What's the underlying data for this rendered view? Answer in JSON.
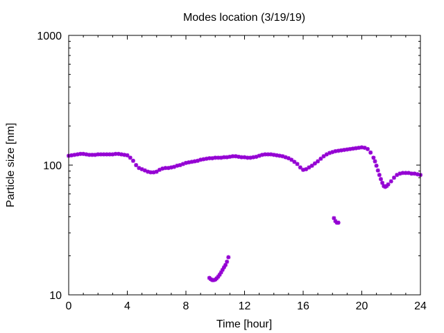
{
  "chart_data": {
    "type": "scatter",
    "title": "Modes location (3/19/19)",
    "xlabel": "Time [hour]",
    "ylabel": "Particle size [nm]",
    "xlim": [
      0,
      24
    ],
    "ylim": [
      10,
      1000
    ],
    "yscale": "log",
    "grid": false,
    "legend": "none",
    "marker_color": "#9400d3",
    "marker": "star",
    "xticks": [
      0,
      4,
      8,
      12,
      16,
      20,
      24
    ],
    "xtick_labels": [
      "0",
      "4",
      "8",
      "12",
      "16",
      "20",
      "24"
    ],
    "yticks": [
      10,
      100,
      1000
    ],
    "ytick_labels": [
      "10",
      "100",
      "1000"
    ],
    "series": [
      {
        "x": [
          0.0,
          0.2,
          0.4,
          0.6,
          0.8,
          1.0,
          1.2,
          1.4,
          1.6,
          1.8,
          2.0,
          2.2,
          2.4,
          2.6,
          2.8,
          3.0,
          3.2,
          3.4,
          3.6,
          3.8,
          4.0,
          4.2,
          4.4,
          4.6,
          4.8,
          5.0,
          5.2,
          5.4,
          5.6,
          5.8,
          6.0,
          6.2,
          6.4,
          6.6,
          6.8,
          7.0,
          7.2,
          7.4,
          7.6,
          7.8,
          8.0,
          8.2,
          8.4,
          8.6,
          8.8,
          9.0,
          9.2,
          9.4,
          9.6,
          9.8,
          10.0,
          10.2,
          10.4,
          10.6,
          10.8,
          11.0,
          11.2,
          11.4,
          11.6,
          11.8,
          12.0,
          12.2,
          12.4,
          12.6,
          12.8,
          13.0,
          13.2,
          13.4,
          13.6,
          13.8,
          14.0,
          14.2,
          14.4,
          14.6,
          14.8,
          15.0,
          15.2,
          15.4,
          15.6,
          15.8,
          16.0,
          16.2,
          16.4,
          16.6,
          16.8,
          17.0,
          17.2,
          17.4,
          17.6,
          17.8,
          18.0,
          18.2,
          18.4,
          18.6,
          18.8,
          19.0,
          19.2,
          19.4,
          19.6,
          19.8,
          20.0,
          20.2,
          20.4,
          20.6,
          20.8
        ],
        "y": [
          118,
          119,
          120,
          121,
          122,
          122,
          121,
          120,
          120,
          120,
          121,
          121,
          121,
          121,
          121,
          121,
          122,
          122,
          121,
          120,
          119,
          114,
          108,
          100,
          95,
          93,
          91,
          89,
          88,
          88,
          89,
          92,
          94,
          95,
          95,
          96,
          97,
          99,
          100,
          102,
          104,
          105,
          106,
          107,
          108,
          110,
          111,
          112,
          113,
          113,
          114,
          114,
          114,
          115,
          115,
          116,
          117,
          117,
          116,
          115,
          115,
          114,
          114,
          115,
          116,
          118,
          120,
          121,
          121,
          121,
          120,
          119,
          118,
          117,
          115,
          113,
          110,
          106,
          102,
          96,
          92,
          93,
          96,
          99,
          103,
          107,
          112,
          117,
          121,
          124,
          126,
          128,
          129,
          130,
          131,
          132,
          133,
          134,
          135,
          136,
          137,
          136,
          133,
          125,
          114
        ]
      },
      {
        "x": [
          20.9,
          21.0,
          21.1,
          21.2,
          21.3,
          21.4,
          21.5,
          21.6,
          21.7,
          21.8,
          22.0,
          22.2,
          22.4,
          22.6,
          22.8,
          23.0,
          23.2,
          23.4,
          23.6,
          23.8,
          24.0
        ],
        "y": [
          107,
          99,
          91,
          84,
          78,
          73,
          69,
          68,
          69,
          71,
          75,
          80,
          84,
          86,
          87,
          87,
          87,
          86,
          86,
          85,
          84
        ]
      },
      {
        "x": [
          9.6,
          9.7,
          9.8,
          9.9,
          10.0,
          10.1,
          10.2,
          10.3,
          10.4,
          10.5,
          10.6,
          10.7,
          10.8,
          10.9
        ],
        "y": [
          13.5,
          13.2,
          13.0,
          13.0,
          13.1,
          13.4,
          13.8,
          14.3,
          14.9,
          15.6,
          16.3,
          17.0,
          18.0,
          19.5
        ]
      },
      {
        "x": [
          18.1,
          18.2,
          18.3,
          18.4
        ],
        "y": [
          39,
          37,
          36,
          36
        ]
      }
    ]
  }
}
